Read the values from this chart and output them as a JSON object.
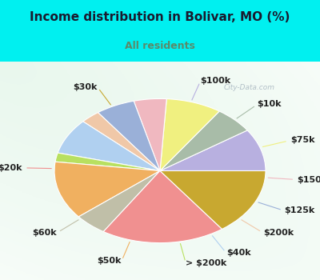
{
  "title": "Income distribution in Bolivar, MO (%)",
  "subtitle": "All residents",
  "title_color": "#1a1a2e",
  "subtitle_color": "#5a8a6a",
  "top_bg_color": "#00f0f0",
  "chart_bg_top": "#c8e8d8",
  "chart_bg_bottom": "#e8f8f0",
  "watermark": "City-Data.com",
  "slices": [
    {
      "label": "$100k",
      "value": 9.5,
      "color": "#b8b0e0"
    },
    {
      "label": "$10k",
      "value": 6.0,
      "color": "#a8bca8"
    },
    {
      "label": "$75k",
      "value": 8.5,
      "color": "#f0f080"
    },
    {
      "label": "$150k",
      "value": 5.0,
      "color": "#f0b8c0"
    },
    {
      "label": "$125k",
      "value": 6.0,
      "color": "#9ab0d8"
    },
    {
      "label": "$200k",
      "value": 3.0,
      "color": "#f0c8a8"
    },
    {
      "label": "$40k",
      "value": 8.0,
      "color": "#b0d0f0"
    },
    {
      "label": "> $200k",
      "value": 2.0,
      "color": "#b8e060"
    },
    {
      "label": "$50k",
      "value": 13.0,
      "color": "#f0b060"
    },
    {
      "label": "$60k",
      "value": 5.0,
      "color": "#c0bfa8"
    },
    {
      "label": "$20k",
      "value": 19.0,
      "color": "#f09090"
    },
    {
      "label": "$30k",
      "value": 15.0,
      "color": "#c8a830"
    }
  ],
  "label_fontsize": 8.0,
  "label_color": "#222222",
  "figsize": [
    4.0,
    3.5
  ],
  "dpi": 100
}
